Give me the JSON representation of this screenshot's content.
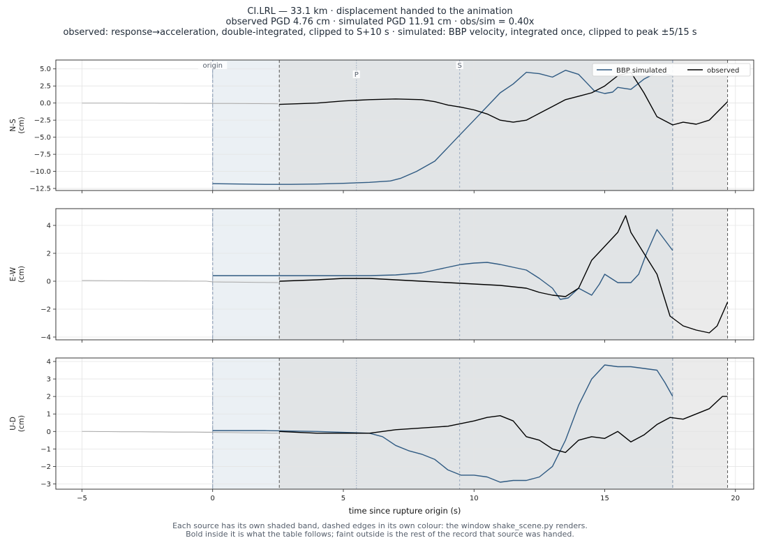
{
  "title": {
    "line1": "CI.LRL  —  33.1 km   ·   displacement handed to the animation",
    "line2": "observed PGD 4.76 cm   ·   simulated PGD 11.91 cm   ·   obs/sim = 0.40x",
    "line3": "observed: response→acceleration, double-integrated, clipped to S+10 s   ·   simulated: BBP velocity, integrated once, clipped to peak ±5/15 s"
  },
  "footer": {
    "line1": "Each source has its own shaded band, dashed edges in its own colour: the window shake_scene.py renders.",
    "line2": "Bold inside it is what the table follows;   faint outside is the rest of the record that source was handed."
  },
  "colors": {
    "simulated": "#2f5a82",
    "observed": "#000000",
    "faint": "#aaaaaa",
    "sim_band": "#e3eaf0",
    "obs_band": "#d8d8d8",
    "sim_edge": "#7d92ab",
    "obs_edge": "#555555",
    "phase_line": "#9aa9bf"
  },
  "chart_data": {
    "type": "line",
    "xlabel": "time since rupture origin (s)",
    "xlim": [
      -6,
      20.7
    ],
    "xticks": [
      -5,
      0,
      5,
      10,
      15,
      20
    ],
    "grid": true,
    "legend": {
      "placement": "top-right",
      "entries": [
        "BBP simulated",
        "observed"
      ]
    },
    "windows": {
      "simulated": [
        0.0,
        17.6
      ],
      "observed": [
        2.55,
        19.7
      ]
    },
    "markers": [
      {
        "label": "origin",
        "t": 0.0
      },
      {
        "label": "P",
        "t": 5.5
      },
      {
        "label": "S",
        "t": 9.45
      }
    ],
    "panels": [
      {
        "component": "N-S",
        "ylabel": "N-S\n(cm)",
        "ylim": [
          -12.8,
          6.3
        ],
        "yticks": [
          -12.5,
          -10.0,
          -7.5,
          -5.0,
          -2.5,
          0.0,
          2.5,
          5.0
        ],
        "ytick_labels": [
          "−12.5",
          "−10.0",
          "−7.5",
          "−5.0",
          "−2.5",
          "0.0",
          "2.5",
          "5.0"
        ],
        "series": [
          {
            "name": "BBP simulated",
            "x": [
              0,
              1,
              2,
              3,
              4,
              5,
              6,
              6.8,
              7.2,
              7.8,
              8.5,
              9,
              9.5,
              10,
              10.5,
              11,
              11.5,
              12,
              12.5,
              13,
              13.5,
              14,
              14.3,
              14.6,
              15,
              15.3,
              15.5,
              16,
              16.5,
              17,
              17.6
            ],
            "y": [
              -11.8,
              -11.85,
              -11.9,
              -11.9,
              -11.85,
              -11.75,
              -11.6,
              -11.4,
              -11.0,
              -10.0,
              -8.5,
              -6.5,
              -4.5,
              -2.5,
              -0.5,
              1.5,
              2.8,
              4.5,
              4.3,
              3.8,
              4.8,
              4.2,
              3.0,
              1.8,
              1.4,
              1.6,
              2.3,
              2.0,
              3.5,
              4.5,
              4.0
            ]
          },
          {
            "name": "observed",
            "x": [
              2.55,
              4,
              5,
              6,
              7,
              8,
              8.5,
              9,
              9.5,
              10,
              10.5,
              11,
              11.5,
              12,
              12.5,
              13,
              13.5,
              14,
              14.5,
              15,
              15.5,
              16,
              16.5,
              17,
              17.6,
              18,
              18.5,
              19,
              19.7
            ],
            "y": [
              -0.2,
              0.0,
              0.3,
              0.5,
              0.6,
              0.5,
              0.2,
              -0.3,
              -0.6,
              -1.0,
              -1.6,
              -2.5,
              -2.8,
              -2.5,
              -1.5,
              -0.5,
              0.5,
              1.0,
              1.5,
              2.5,
              4.0,
              4.5,
              1.5,
              -2.0,
              -3.2,
              -2.8,
              -3.1,
              -2.5,
              0.2
            ]
          }
        ]
      },
      {
        "component": "E-W",
        "ylabel": "E-W\n(cm)",
        "ylim": [
          -4.2,
          5.2
        ],
        "yticks": [
          -4,
          -2,
          0,
          2,
          4
        ],
        "ytick_labels": [
          "−4",
          "−2",
          "0",
          "2",
          "4"
        ],
        "series": [
          {
            "name": "BBP simulated",
            "x": [
              0,
              2,
              4,
              6,
              7,
              8,
              8.5,
              9,
              9.5,
              10,
              10.5,
              11,
              11.5,
              12,
              12.5,
              13,
              13.3,
              13.6,
              14,
              14.5,
              14.8,
              15,
              15.5,
              16,
              16.3,
              16.6,
              17,
              17.2,
              17.6
            ],
            "y": [
              0.4,
              0.4,
              0.4,
              0.4,
              0.45,
              0.6,
              0.8,
              1.0,
              1.2,
              1.3,
              1.35,
              1.2,
              1.0,
              0.8,
              0.2,
              -0.5,
              -1.3,
              -1.2,
              -0.5,
              -1.0,
              -0.2,
              0.5,
              -0.1,
              -0.1,
              0.5,
              2.0,
              3.7,
              3.2,
              2.2
            ]
          },
          {
            "name": "observed",
            "x": [
              2.55,
              4,
              5,
              6,
              7,
              8,
              9,
              10,
              11,
              12,
              12.5,
              13,
              13.5,
              14,
              14.5,
              15,
              15.5,
              15.8,
              16,
              16.5,
              17,
              17.5,
              18,
              18.5,
              19,
              19.3,
              19.7
            ],
            "y": [
              0.0,
              0.1,
              0.2,
              0.2,
              0.1,
              0.0,
              -0.1,
              -0.2,
              -0.3,
              -0.5,
              -0.8,
              -1.0,
              -1.1,
              -0.5,
              1.5,
              2.5,
              3.5,
              4.7,
              3.5,
              2.0,
              0.5,
              -2.5,
              -3.2,
              -3.5,
              -3.7,
              -3.2,
              -1.5
            ]
          }
        ]
      },
      {
        "component": "U-D",
        "ylabel": "U-D\n(cm)",
        "ylim": [
          -3.3,
          4.2
        ],
        "yticks": [
          -3,
          -2,
          -1,
          0,
          1,
          2,
          3,
          4
        ],
        "ytick_labels": [
          "−3",
          "−2",
          "−1",
          "0",
          "1",
          "2",
          "3",
          "4"
        ],
        "series": [
          {
            "name": "BBP simulated",
            "x": [
              0,
              2,
              4,
              6,
              6.5,
              7,
              7.5,
              8,
              8.5,
              9,
              9.5,
              10,
              10.5,
              11,
              11.5,
              12,
              12.5,
              13,
              13.5,
              14,
              14.5,
              15,
              15.5,
              16,
              16.5,
              17,
              17.3,
              17.6
            ],
            "y": [
              0.05,
              0.05,
              0.0,
              -0.1,
              -0.3,
              -0.8,
              -1.1,
              -1.3,
              -1.6,
              -2.2,
              -2.5,
              -2.5,
              -2.6,
              -2.9,
              -2.8,
              -2.8,
              -2.6,
              -2.0,
              -0.5,
              1.5,
              3.0,
              3.8,
              3.7,
              3.7,
              3.6,
              3.5,
              2.8,
              2.0
            ]
          },
          {
            "name": "observed",
            "x": [
              2.55,
              4,
              5,
              6,
              7,
              8,
              9,
              10,
              10.5,
              11,
              11.5,
              12,
              12.5,
              13,
              13.5,
              14,
              14.5,
              15,
              15.5,
              16,
              16.5,
              17,
              17.5,
              18,
              18.5,
              19,
              19.5,
              19.7
            ],
            "y": [
              0.0,
              -0.1,
              -0.1,
              -0.1,
              0.1,
              0.2,
              0.3,
              0.6,
              0.8,
              0.9,
              0.6,
              -0.3,
              -0.5,
              -1.0,
              -1.2,
              -0.5,
              -0.3,
              -0.4,
              0.0,
              -0.6,
              -0.2,
              0.4,
              0.8,
              0.7,
              1.0,
              1.3,
              2.0,
              2.0
            ]
          }
        ]
      }
    ]
  }
}
